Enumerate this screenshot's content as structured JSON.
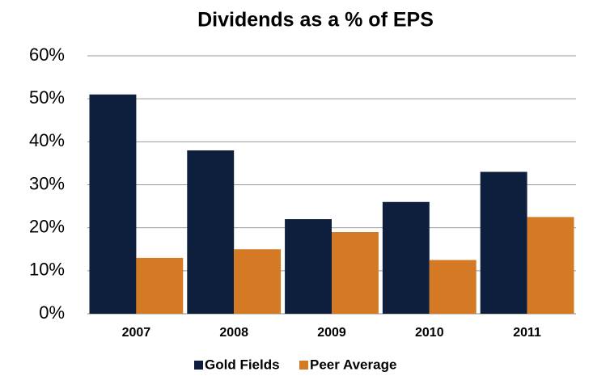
{
  "chart_data": {
    "type": "bar",
    "title": "Dividends as a % of EPS",
    "categories": [
      "2007",
      "2008",
      "2009",
      "2010",
      "2011"
    ],
    "series": [
      {
        "name": "Gold Fields",
        "color": "#0d1f3c",
        "values": [
          51,
          38,
          22,
          26,
          33
        ]
      },
      {
        "name": "Peer Average",
        "color": "#d47a25",
        "values": [
          13,
          15,
          19,
          12.5,
          22.5
        ]
      }
    ],
    "ylim": [
      0,
      60
    ],
    "yticks": [
      {
        "value": 0,
        "label": "0%"
      },
      {
        "value": 10,
        "label": "10%"
      },
      {
        "value": 20,
        "label": "20%"
      },
      {
        "value": 30,
        "label": "30%"
      },
      {
        "value": 40,
        "label": "40%"
      },
      {
        "value": 50,
        "label": "50%"
      },
      {
        "value": 60,
        "label": "60%"
      }
    ],
    "grid": true,
    "legend": "bottom"
  }
}
